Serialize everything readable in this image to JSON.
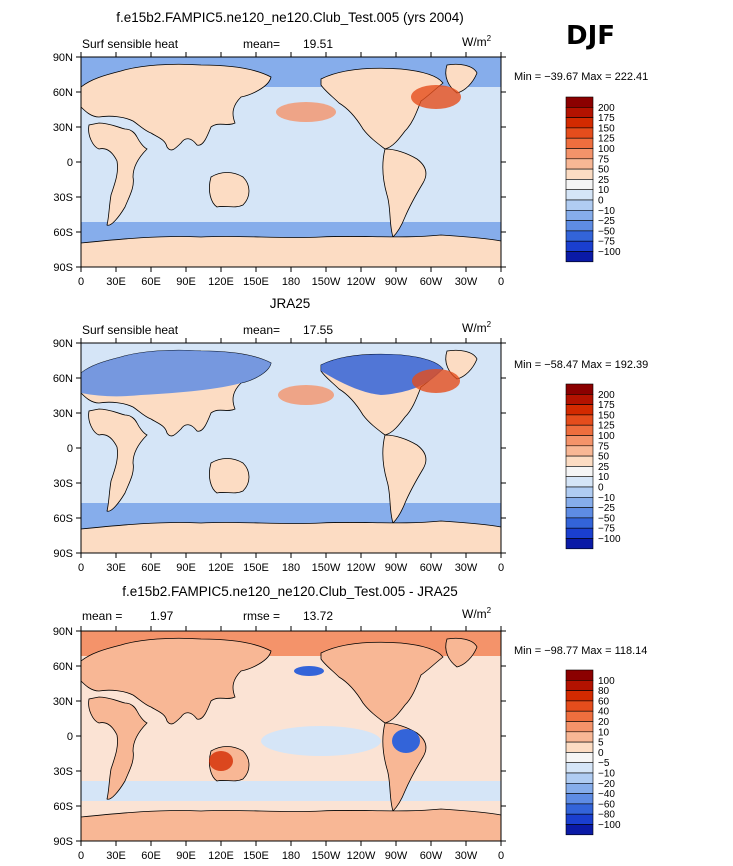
{
  "season": "DJF",
  "panels": [
    {
      "title": "f.e15b2.FAMPIC5.ne120_ne120.Club_Test.005 (yrs 2004)",
      "left_label": "Surf sensible heat",
      "stat_label": "mean=",
      "stat_value": "19.51",
      "stat2_label": "",
      "stat2_value": "",
      "units": "W/m",
      "units_sup": "2",
      "minmax": "Min = −39.67 Max = 222.41",
      "levels": [
        "200",
        "175",
        "150",
        "125",
        "100",
        "75",
        "50",
        "25",
        "10",
        "0",
        "−10",
        "−25",
        "−50",
        "−75",
        "−100"
      ],
      "colors": [
        "#8b0000",
        "#b31200",
        "#d32a00",
        "#e54d1c",
        "#ee6e3e",
        "#f4936a",
        "#f8b795",
        "#fcdcc3",
        "#f5f5f5",
        "#d5e5f7",
        "#b0ccf2",
        "#86adeb",
        "#5e8ce4",
        "#3364d9",
        "#1a3fcf",
        "#0a1aa6"
      ],
      "ocean_color": "#d5e5f7"
    },
    {
      "title": "JRA25",
      "left_label": "Surf sensible heat",
      "stat_label": "mean=",
      "stat_value": "17.55",
      "stat2_label": "",
      "stat2_value": "",
      "units": "W/m",
      "units_sup": "2",
      "minmax": "Min = −58.47 Max = 192.39",
      "levels": [
        "200",
        "175",
        "150",
        "125",
        "100",
        "75",
        "50",
        "25",
        "10",
        "0",
        "−10",
        "−25",
        "−50",
        "−75",
        "−100"
      ],
      "colors": [
        "#8b0000",
        "#b31200",
        "#d32a00",
        "#e54d1c",
        "#ee6e3e",
        "#f4936a",
        "#f8b795",
        "#fcdcc3",
        "#f5f5f5",
        "#d5e5f7",
        "#b0ccf2",
        "#86adeb",
        "#5e8ce4",
        "#3364d9",
        "#1a3fcf",
        "#0a1aa6"
      ],
      "ocean_color": "#d5e5f7"
    },
    {
      "title": "f.e15b2.FAMPIC5.ne120_ne120.Club_Test.005 - JRA25",
      "left_label": "mean =",
      "stat_label": "",
      "stat_value": "1.97",
      "stat2_label": "rmse =",
      "stat2_value": "13.72",
      "units": "W/m",
      "units_sup": "2",
      "minmax": "Min = −98.77 Max = 118.14",
      "levels": [
        "100",
        "80",
        "60",
        "40",
        "20",
        "10",
        "5",
        "0",
        "−5",
        "−10",
        "−20",
        "−40",
        "−60",
        "−80",
        "−100"
      ],
      "colors": [
        "#8b0000",
        "#b31200",
        "#d32a00",
        "#e54d1c",
        "#ee6e3e",
        "#f4936a",
        "#f8b795",
        "#fcdcc3",
        "#f5f5f5",
        "#d5e5f7",
        "#b0ccf2",
        "#86adeb",
        "#5e8ce4",
        "#3364d9",
        "#1a3fcf",
        "#0a1aa6"
      ],
      "ocean_color": "#fbe3d4"
    }
  ],
  "axes": {
    "lat_ticks": [
      "90N",
      "60N",
      "30N",
      "0",
      "30S",
      "60S",
      "90S"
    ],
    "lon_ticks": [
      "0",
      "30E",
      "60E",
      "90E",
      "120E",
      "150E",
      "180",
      "150W",
      "120W",
      "90W",
      "60W",
      "30W",
      "0"
    ]
  }
}
